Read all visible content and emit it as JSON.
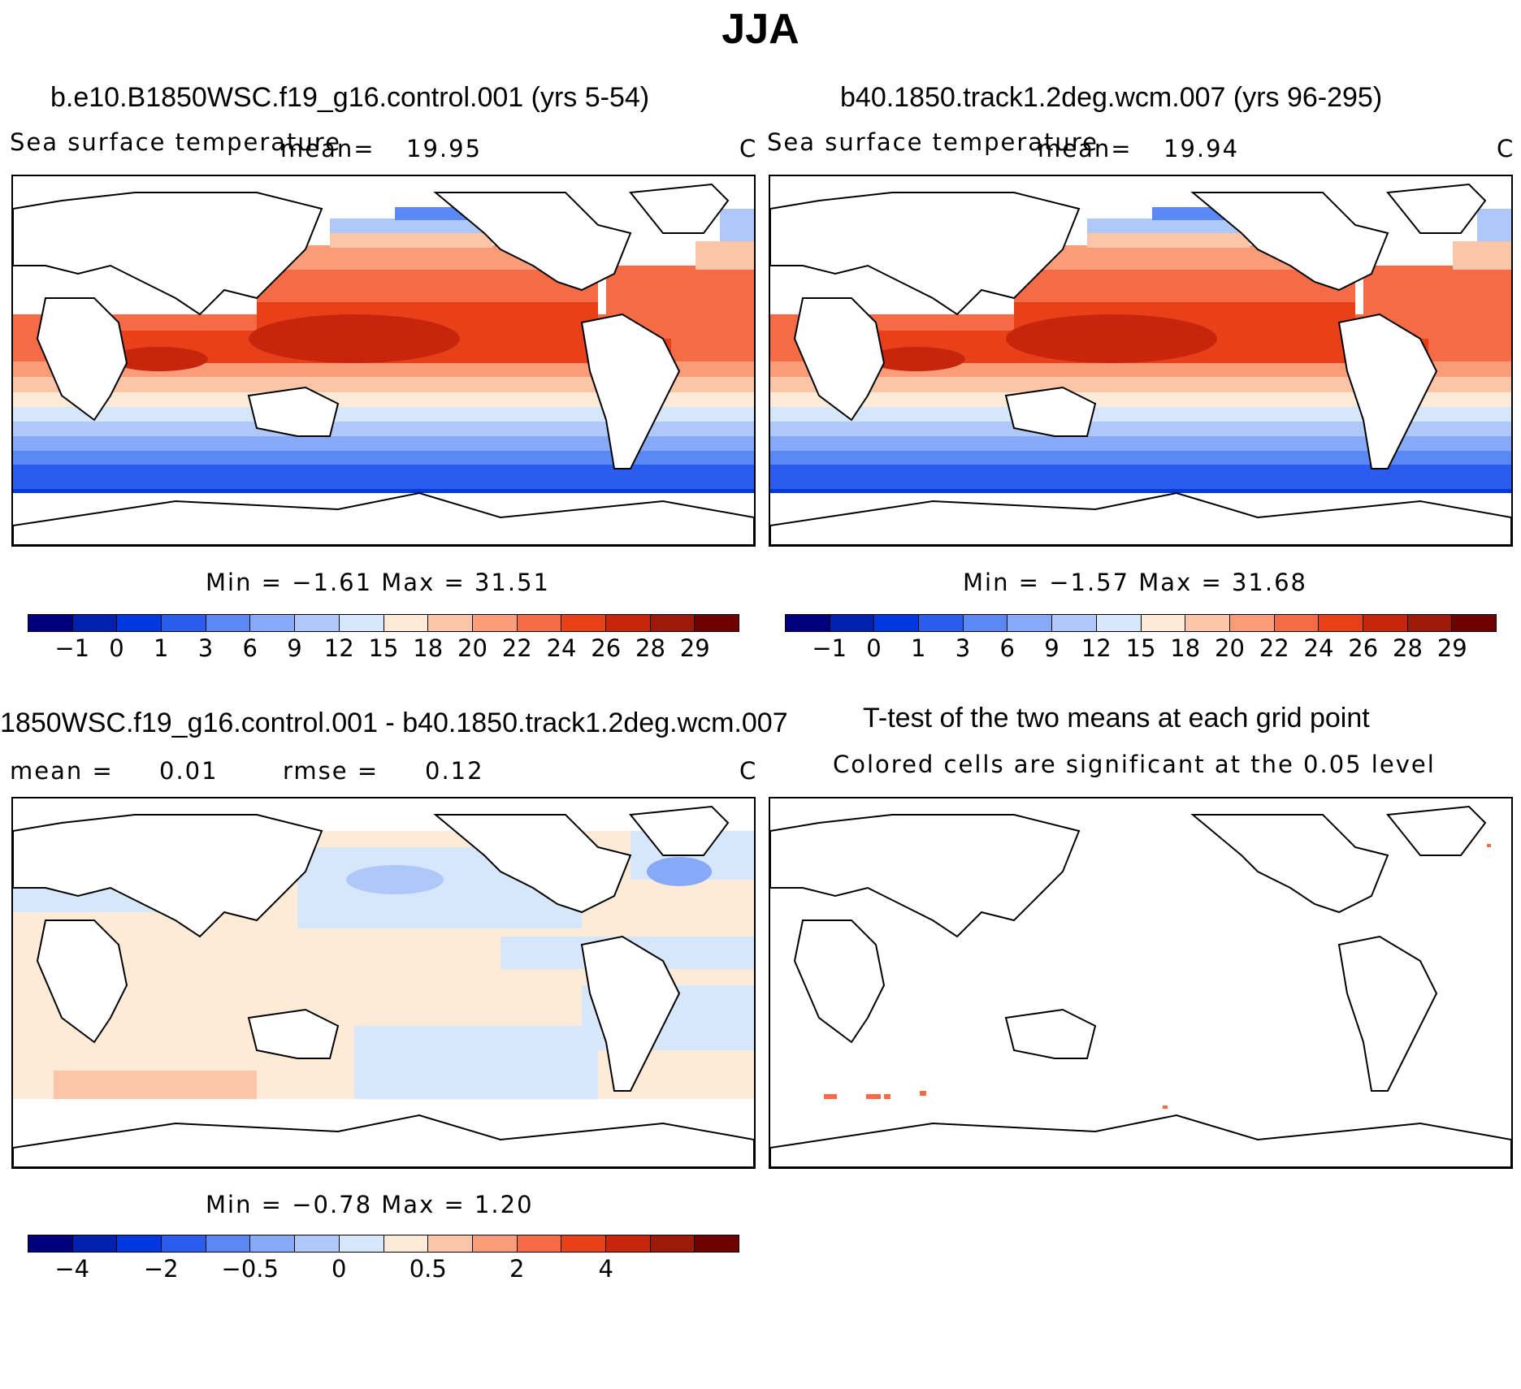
{
  "title": "JJA",
  "panels": {
    "p1": {
      "title": "b.e10.B1850WSC.f19_g16.control.001 (yrs 5-54)",
      "variable": "Sea surface temperature",
      "mean_label": "mean=",
      "mean_value": "19.95",
      "units": "C",
      "minmax": "Min =  −1.61 Max =  31.51"
    },
    "p2": {
      "title": "b40.1850.track1.2deg.wcm.007 (yrs 96-295)",
      "variable": "Sea surface temperature",
      "mean_label": "mean=",
      "mean_value": "19.94",
      "units": "C",
      "minmax": "Min =  −1.57 Max =  31.68"
    },
    "p3": {
      "title": "1850WSC.f19_g16.control.001 - b40.1850.track1.2deg.wcm.007",
      "mean_label": "mean =",
      "mean_value": "0.01",
      "rmse_label": "rmse =",
      "rmse_value": "0.12",
      "units": "C",
      "minmax": "Min =  −0.78 Max =   1.20"
    },
    "p4": {
      "title": "T-test of the two means at each grid point",
      "subtitle": "Colored cells are significant at the 0.05 level"
    }
  },
  "colorbars": {
    "sst": {
      "colors": [
        "#00007f",
        "#0020b0",
        "#0038e0",
        "#2a5cf0",
        "#5a88f5",
        "#86a9f8",
        "#aec8fa",
        "#d6e6fb",
        "#fdebd8",
        "#fcc5a8",
        "#fb9c78",
        "#f56b46",
        "#e8411a",
        "#c8260c",
        "#9e1a08",
        "#6e0000"
      ],
      "labels": [
        "−1",
        "0",
        "1",
        "3",
        "6",
        "9",
        "12",
        "15",
        "18",
        "20",
        "22",
        "24",
        "26",
        "28",
        "29"
      ]
    },
    "diff": {
      "colors": [
        "#00007f",
        "#0020b0",
        "#0038e0",
        "#2a5cf0",
        "#5a88f5",
        "#86a9f8",
        "#aec8fa",
        "#d6e6fb",
        "#fdebd8",
        "#fcc5a8",
        "#fb9c78",
        "#f56b46",
        "#e8411a",
        "#c8260c",
        "#9e1a08",
        "#6e0000"
      ],
      "labels": [
        "−4",
        "",
        "−2",
        "",
        "−0.5",
        "",
        "0",
        "",
        "0.5",
        "",
        "2",
        "",
        "4",
        ""
      ]
    }
  }
}
